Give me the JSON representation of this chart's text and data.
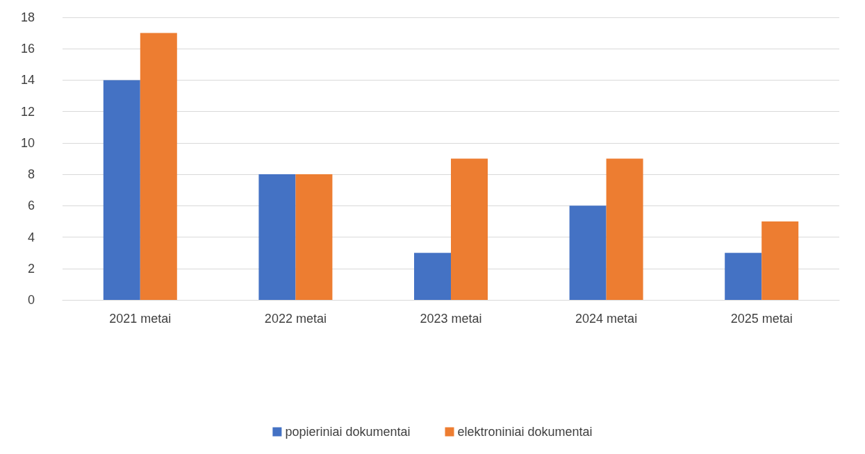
{
  "chart_data": {
    "type": "bar",
    "categories": [
      "2021 metai",
      "2022 metai",
      "2023 metai",
      "2024 metai",
      "2025 metai"
    ],
    "series": [
      {
        "name": "popieriniai dokumentai",
        "color": "#4472c4",
        "values": [
          14,
          8,
          3,
          6,
          3
        ]
      },
      {
        "name": "elektroniniai dokumentai",
        "color": "#ed7d31",
        "values": [
          17,
          8,
          9,
          9,
          5
        ]
      }
    ],
    "ylim": [
      0,
      18
    ],
    "yticks": [
      0,
      2,
      4,
      6,
      8,
      10,
      12,
      14,
      16,
      18
    ],
    "grid": "y",
    "legend": "bottom"
  }
}
